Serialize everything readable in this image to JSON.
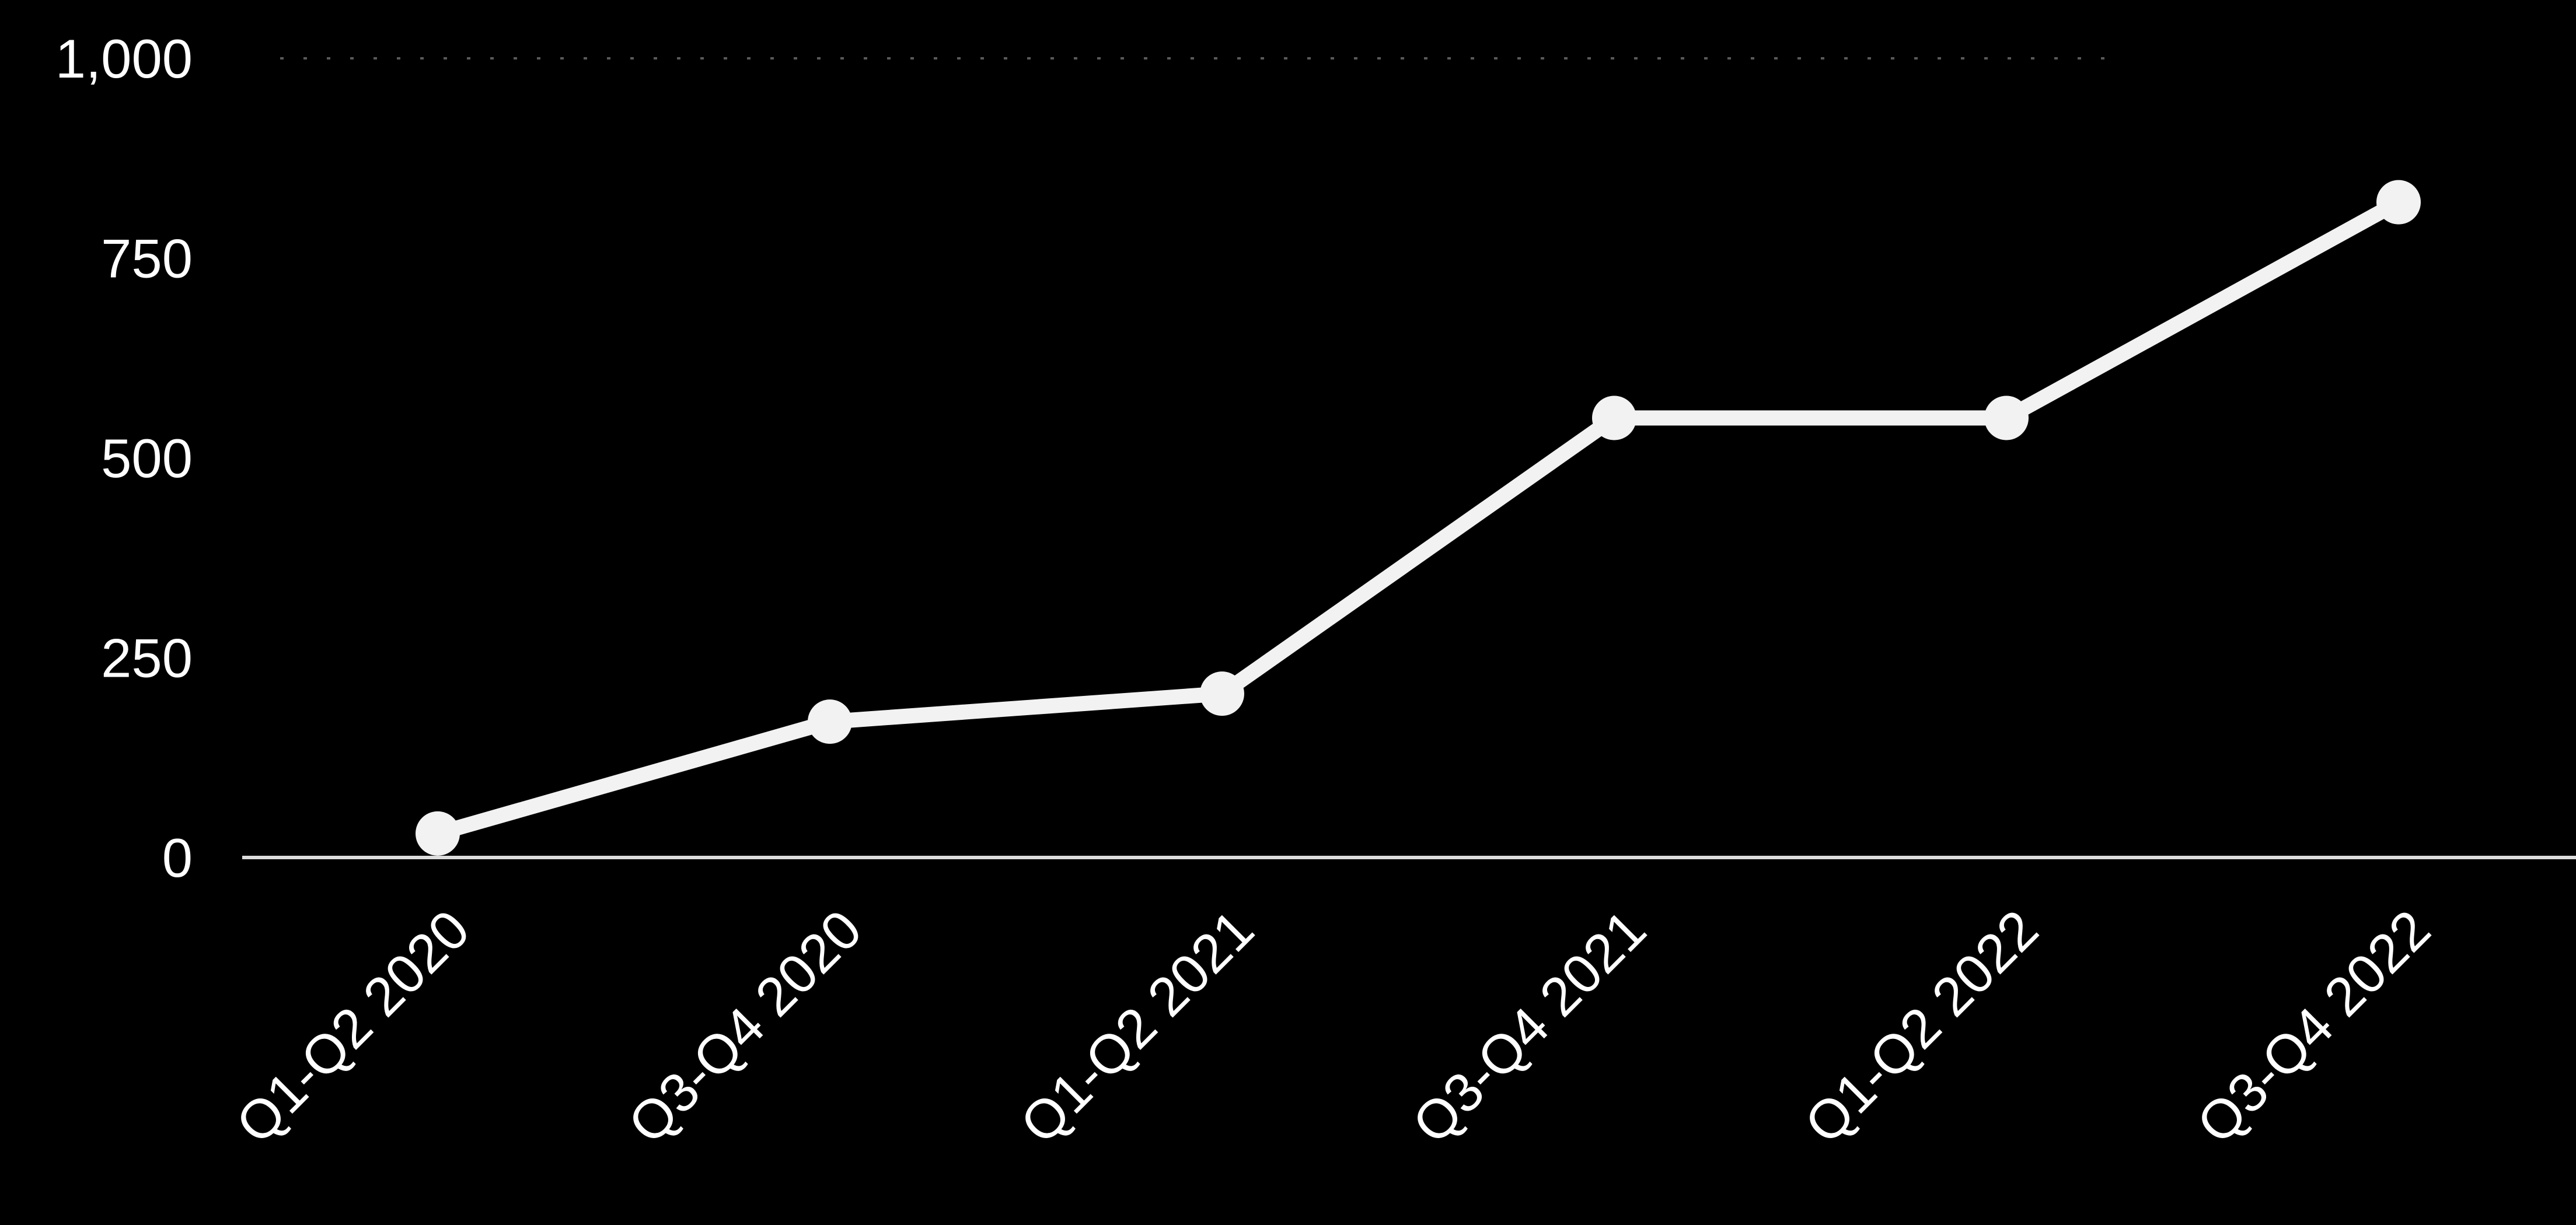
{
  "colors": {
    "background": "#000000",
    "line": "#f2f2f2",
    "axis": "#dcdcdc",
    "gridline": "#5a5a5a",
    "text": "#ffffff"
  },
  "chart_data": {
    "type": "line",
    "title": "",
    "xlabel": "",
    "ylabel": "",
    "categories": [
      "Q1-Q2 2020",
      "Q3-Q4 2020",
      "Q1-Q2 2021",
      "Q3-Q4 2021",
      "Q1-Q2 2022",
      "Q3-Q4 2022"
    ],
    "series": [
      {
        "values": [
          30,
          170,
          205,
          550,
          550,
          820
        ]
      }
    ],
    "ylim": [
      0,
      1000
    ],
    "yticks": [
      0,
      250,
      500,
      750,
      1000
    ],
    "ytick_labels": [
      "0",
      "250",
      "500",
      "750",
      "1,000"
    ],
    "grid": "top gridline only (dotted, faint)",
    "legend": "none",
    "markers": "circle"
  }
}
